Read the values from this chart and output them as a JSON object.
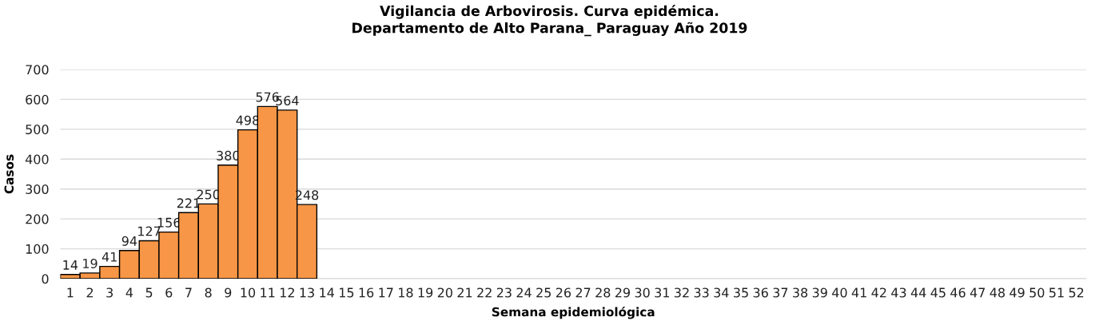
{
  "chart_data": {
    "type": "bar",
    "title": "Vigilancia de Arbovirosis. Curva epidémica.\nDepartamento de Alto Parana_ Paraguay Año 2019",
    "xlabel": "Semana epidemiológica",
    "ylabel": "Casos",
    "categories": [
      "1",
      "2",
      "3",
      "4",
      "5",
      "6",
      "7",
      "8",
      "9",
      "10",
      "11",
      "12",
      "13",
      "14",
      "15",
      "16",
      "17",
      "18",
      "19",
      "20",
      "21",
      "22",
      "23",
      "24",
      "25",
      "26",
      "27",
      "28",
      "29",
      "30",
      "31",
      "32",
      "33",
      "34",
      "35",
      "36",
      "37",
      "38",
      "39",
      "40",
      "41",
      "42",
      "43",
      "44",
      "45",
      "46",
      "47",
      "48",
      "49",
      "50",
      "51",
      "52"
    ],
    "values": [
      14,
      19,
      41,
      94,
      127,
      156,
      221,
      250,
      380,
      498,
      576,
      564,
      248,
      null,
      null,
      null,
      null,
      null,
      null,
      null,
      null,
      null,
      null,
      null,
      null,
      null,
      null,
      null,
      null,
      null,
      null,
      null,
      null,
      null,
      null,
      null,
      null,
      null,
      null,
      null,
      null,
      null,
      null,
      null,
      null,
      null,
      null,
      null,
      null,
      null,
      null,
      null
    ],
    "color": "#f79646",
    "ylim": [
      0,
      700
    ],
    "yticks": [
      0,
      100,
      200,
      300,
      400,
      500,
      600,
      700
    ],
    "grid": "y",
    "data_labels": true,
    "legend": false
  }
}
